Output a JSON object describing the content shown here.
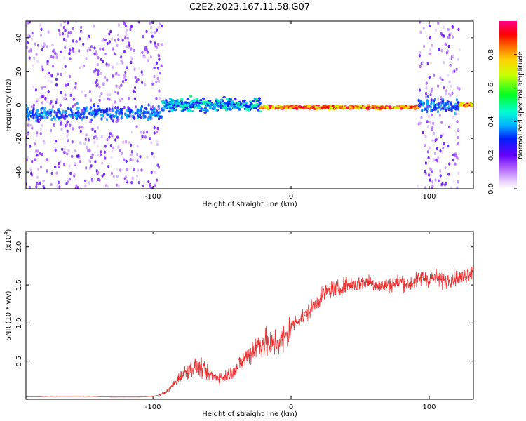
{
  "title": "C2E2.2023.167.11.58.G07",
  "chart_data": [
    {
      "type": "heatmap",
      "xlabel": "Height of straight line (km)",
      "ylabel": "Frequency (Hz)",
      "xlim": [
        -192,
        132
      ],
      "ylim": [
        -50,
        50
      ],
      "xticks": [
        -100,
        0,
        100
      ],
      "xtick_labels": [
        "-100",
        "0",
        "100"
      ],
      "yticks": [
        -40,
        -20,
        0,
        20,
        40
      ],
      "ytick_labels": [
        "-40",
        "-20",
        "0",
        "20",
        "40"
      ],
      "colorbar": {
        "label": "Normalized spectral amplitude",
        "range": [
          0,
          1
        ],
        "ticks": [
          0.0,
          0.2,
          0.4,
          0.6,
          0.8
        ],
        "tick_labels": [
          "0.0",
          "0.2",
          "0.4",
          "0.6",
          "0.8"
        ],
        "colormap": "rainbow (white-violet-blue-cyan-green-yellow-orange-red-magenta)"
      },
      "regions": [
        {
          "x_range": [
            -192,
            -93
          ],
          "description": "broadband scattered noise, peak near 0 Hz",
          "center_hz": -5,
          "amplitude": 0.25
        },
        {
          "x_range": [
            -93,
            -22
          ],
          "description": "Doppler band narrowing",
          "center_hz": 0,
          "amplitude": 0.4
        },
        {
          "x_range": [
            -22,
            92
          ],
          "description": "narrow carrier line",
          "center_hz": -1.5,
          "amplitude": 0.9
        },
        {
          "x_range": [
            92,
            122
          ],
          "description": "broadband scattered noise",
          "center_hz": 0,
          "amplitude": 0.25
        },
        {
          "x_range": [
            122,
            132
          ],
          "description": "carrier line",
          "center_hz": 0,
          "amplitude": 0.9
        }
      ]
    },
    {
      "type": "line",
      "xlabel": "Height of straight line (km)",
      "ylabel": "SNR (10 * v/v)",
      "y_scale_label": "(x10^4)",
      "y_scale_base": "(x10",
      "y_scale_exp": "4",
      "y_scale_close": ")",
      "xlim": [
        -192,
        132
      ],
      "ylim": [
        0,
        2.2
      ],
      "xticks": [
        -100,
        0,
        100
      ],
      "xtick_labels": [
        "-100",
        "0",
        "100"
      ],
      "yticks": [
        0.5,
        1.0,
        1.5,
        2.0
      ],
      "ytick_labels": [
        "0.5",
        "1.0",
        "1.5",
        "2.0"
      ],
      "series": [
        {
          "color": "#ee3333",
          "x": [
            -192,
            -170,
            -150,
            -130,
            -110,
            -100,
            -95,
            -90,
            -85,
            -80,
            -75,
            -70,
            -65,
            -60,
            -55,
            -50,
            -45,
            -40,
            -35,
            -30,
            -25,
            -20,
            -15,
            -10,
            -5,
            0,
            5,
            10,
            15,
            20,
            25,
            30,
            35,
            40,
            45,
            50,
            55,
            60,
            65,
            70,
            75,
            80,
            85,
            90,
            95,
            100,
            105,
            110,
            115,
            120,
            125,
            132
          ],
          "y": [
            0.03,
            0.04,
            0.04,
            0.03,
            0.03,
            0.04,
            0.06,
            0.1,
            0.2,
            0.3,
            0.38,
            0.42,
            0.4,
            0.33,
            0.3,
            0.28,
            0.33,
            0.4,
            0.5,
            0.6,
            0.7,
            0.75,
            0.7,
            0.75,
            0.78,
            0.95,
            1.05,
            1.1,
            1.2,
            1.3,
            1.4,
            1.45,
            1.45,
            1.5,
            1.5,
            1.52,
            1.55,
            1.52,
            1.48,
            1.5,
            1.52,
            1.55,
            1.5,
            1.55,
            1.6,
            1.58,
            1.6,
            1.55,
            1.58,
            1.6,
            1.6,
            1.72
          ]
        }
      ]
    }
  ]
}
